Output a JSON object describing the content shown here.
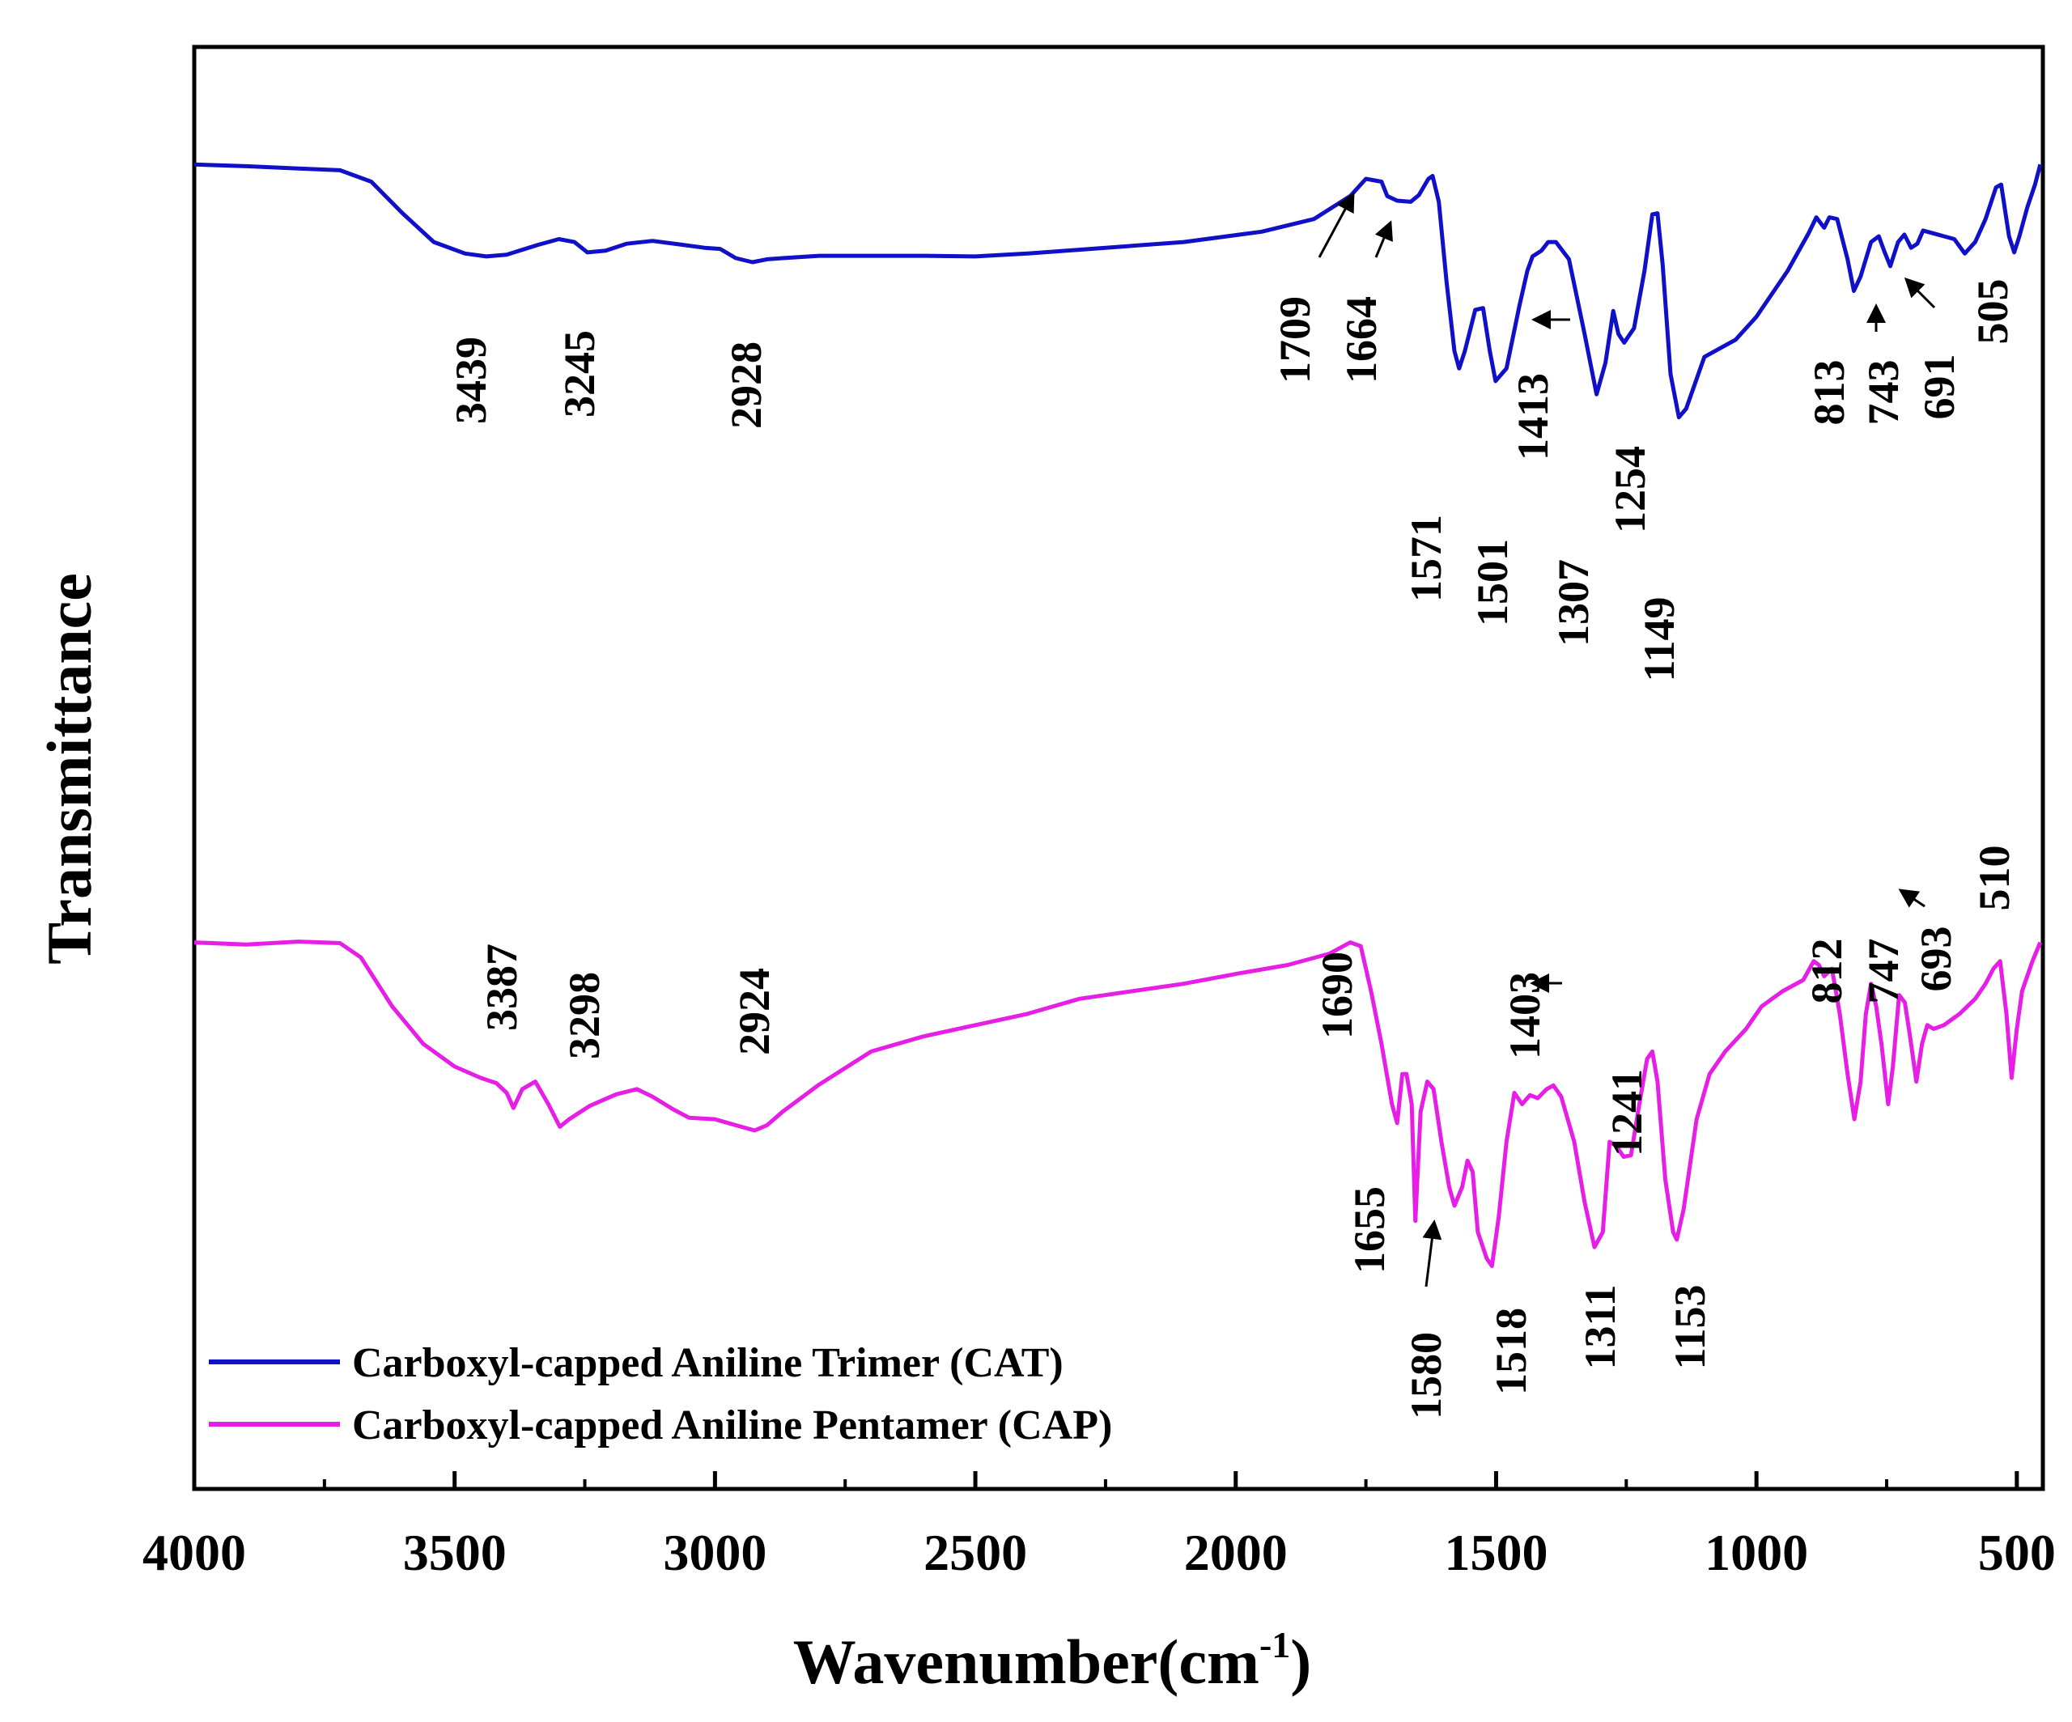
{
  "chart_data": {
    "type": "line",
    "title": "",
    "xlabel": "Wavenumber(cm",
    "xlabel_sup": "-1",
    "xlabel_close": ")",
    "ylabel": "Transmittance",
    "xlim": [
      4000,
      450
    ],
    "x_ticks": [
      4000,
      3500,
      3000,
      2500,
      2000,
      1500,
      1000,
      500
    ],
    "x_tick_labels": [
      "4000",
      "3500",
      "3000",
      "2500",
      "2000",
      "1500",
      "1000",
      "500"
    ],
    "x_minor_ticks": [
      3750,
      3250,
      2750,
      2250,
      1750,
      1250,
      750
    ],
    "grid": false,
    "legend_position": "bottom-left",
    "colors": {
      "CAT": "#1010c8",
      "CAP": "#e61ee6",
      "axis": "#000000",
      "text": "#000000"
    },
    "series": [
      {
        "id": "CAT",
        "name": "Carboxyl-capped Aniline Trimer (CAT)",
        "color": "#1010c8",
        "y_domain": [
          0,
          1
        ],
        "points": [
          [
            4000,
            0.925
          ],
          [
            3900,
            0.922
          ],
          [
            3800,
            0.918
          ],
          [
            3720,
            0.915
          ],
          [
            3660,
            0.895
          ],
          [
            3600,
            0.84
          ],
          [
            3540,
            0.79
          ],
          [
            3480,
            0.77
          ],
          [
            3439,
            0.765
          ],
          [
            3400,
            0.768
          ],
          [
            3340,
            0.785
          ],
          [
            3300,
            0.795
          ],
          [
            3270,
            0.79
          ],
          [
            3245,
            0.772
          ],
          [
            3210,
            0.775
          ],
          [
            3170,
            0.787
          ],
          [
            3120,
            0.792
          ],
          [
            3070,
            0.786
          ],
          [
            3020,
            0.78
          ],
          [
            2990,
            0.778
          ],
          [
            2960,
            0.762
          ],
          [
            2928,
            0.755
          ],
          [
            2900,
            0.76
          ],
          [
            2870,
            0.762
          ],
          [
            2800,
            0.766
          ],
          [
            2600,
            0.766
          ],
          [
            2500,
            0.765
          ],
          [
            2400,
            0.77
          ],
          [
            2250,
            0.78
          ],
          [
            2100,
            0.79
          ],
          [
            1950,
            0.808
          ],
          [
            1850,
            0.83
          ],
          [
            1780,
            0.87
          ],
          [
            1750,
            0.9
          ],
          [
            1720,
            0.895
          ],
          [
            1709,
            0.87
          ],
          [
            1690,
            0.862
          ],
          [
            1664,
            0.86
          ],
          [
            1648,
            0.872
          ],
          [
            1630,
            0.9
          ],
          [
            1622,
            0.905
          ],
          [
            1610,
            0.86
          ],
          [
            1595,
            0.72
          ],
          [
            1580,
            0.6
          ],
          [
            1571,
            0.57
          ],
          [
            1560,
            0.6
          ],
          [
            1540,
            0.672
          ],
          [
            1525,
            0.675
          ],
          [
            1512,
            0.6
          ],
          [
            1501,
            0.548
          ],
          [
            1480,
            0.57
          ],
          [
            1455,
            0.68
          ],
          [
            1440,
            0.74
          ],
          [
            1430,
            0.765
          ],
          [
            1413,
            0.775
          ],
          [
            1400,
            0.79
          ],
          [
            1385,
            0.79
          ],
          [
            1360,
            0.76
          ],
          [
            1330,
            0.63
          ],
          [
            1307,
            0.525
          ],
          [
            1290,
            0.58
          ],
          [
            1275,
            0.67
          ],
          [
            1265,
            0.63
          ],
          [
            1254,
            0.615
          ],
          [
            1235,
            0.64
          ],
          [
            1215,
            0.74
          ],
          [
            1200,
            0.838
          ],
          [
            1190,
            0.84
          ],
          [
            1180,
            0.75
          ],
          [
            1165,
            0.56
          ],
          [
            1149,
            0.485
          ],
          [
            1135,
            0.5
          ],
          [
            1100,
            0.59
          ],
          [
            1040,
            0.62
          ],
          [
            1000,
            0.66
          ],
          [
            940,
            0.74
          ],
          [
            900,
            0.805
          ],
          [
            885,
            0.833
          ],
          [
            870,
            0.815
          ],
          [
            860,
            0.833
          ],
          [
            845,
            0.83
          ],
          [
            825,
            0.76
          ],
          [
            813,
            0.705
          ],
          [
            800,
            0.73
          ],
          [
            780,
            0.79
          ],
          [
            765,
            0.8
          ],
          [
            755,
            0.775
          ],
          [
            743,
            0.748
          ],
          [
            728,
            0.79
          ],
          [
            716,
            0.803
          ],
          [
            703,
            0.78
          ],
          [
            691,
            0.787
          ],
          [
            680,
            0.81
          ],
          [
            660,
            0.805
          ],
          [
            640,
            0.8
          ],
          [
            620,
            0.795
          ],
          [
            600,
            0.77
          ],
          [
            580,
            0.79
          ],
          [
            560,
            0.83
          ],
          [
            540,
            0.885
          ],
          [
            530,
            0.89
          ],
          [
            515,
            0.8
          ],
          [
            505,
            0.772
          ],
          [
            495,
            0.8
          ],
          [
            480,
            0.85
          ],
          [
            465,
            0.89
          ],
          [
            455,
            0.925
          ]
        ],
        "peak_labels": [
          "3439",
          "3245",
          "2928",
          "1709",
          "1664",
          "1571",
          "1501",
          "1413",
          "1307",
          "1254",
          "1149",
          "813",
          "743",
          "691",
          "505"
        ]
      },
      {
        "id": "CAP",
        "name": "Carboxyl-capped Aniline Pentamer (CAP)",
        "color": "#e61ee6",
        "y_domain": [
          0,
          1
        ],
        "points": [
          [
            4000,
            0.565
          ],
          [
            3900,
            0.562
          ],
          [
            3800,
            0.566
          ],
          [
            3720,
            0.564
          ],
          [
            3680,
            0.545
          ],
          [
            3620,
            0.48
          ],
          [
            3560,
            0.43
          ],
          [
            3500,
            0.4
          ],
          [
            3450,
            0.385
          ],
          [
            3420,
            0.378
          ],
          [
            3400,
            0.365
          ],
          [
            3387,
            0.345
          ],
          [
            3370,
            0.37
          ],
          [
            3345,
            0.38
          ],
          [
            3320,
            0.35
          ],
          [
            3298,
            0.32
          ],
          [
            3280,
            0.33
          ],
          [
            3240,
            0.348
          ],
          [
            3190,
            0.363
          ],
          [
            3150,
            0.37
          ],
          [
            3120,
            0.36
          ],
          [
            3080,
            0.343
          ],
          [
            3050,
            0.332
          ],
          [
            3000,
            0.33
          ],
          [
            2960,
            0.322
          ],
          [
            2924,
            0.315
          ],
          [
            2900,
            0.322
          ],
          [
            2870,
            0.34
          ],
          [
            2800,
            0.376
          ],
          [
            2700,
            0.42
          ],
          [
            2600,
            0.44
          ],
          [
            2500,
            0.455
          ],
          [
            2400,
            0.47
          ],
          [
            2300,
            0.49
          ],
          [
            2200,
            0.5
          ],
          [
            2100,
            0.51
          ],
          [
            2000,
            0.523
          ],
          [
            1900,
            0.535
          ],
          [
            1820,
            0.55
          ],
          [
            1780,
            0.565
          ],
          [
            1760,
            0.56
          ],
          [
            1740,
            0.5
          ],
          [
            1720,
            0.43
          ],
          [
            1700,
            0.35
          ],
          [
            1690,
            0.325
          ],
          [
            1680,
            0.39
          ],
          [
            1672,
            0.39
          ],
          [
            1662,
            0.35
          ],
          [
            1655,
            0.195
          ],
          [
            1645,
            0.34
          ],
          [
            1632,
            0.38
          ],
          [
            1620,
            0.37
          ],
          [
            1605,
            0.3
          ],
          [
            1590,
            0.24
          ],
          [
            1580,
            0.215
          ],
          [
            1565,
            0.24
          ],
          [
            1555,
            0.275
          ],
          [
            1545,
            0.26
          ],
          [
            1535,
            0.18
          ],
          [
            1518,
            0.145
          ],
          [
            1508,
            0.135
          ],
          [
            1495,
            0.2
          ],
          [
            1480,
            0.3
          ],
          [
            1465,
            0.365
          ],
          [
            1450,
            0.35
          ],
          [
            1435,
            0.362
          ],
          [
            1420,
            0.358
          ],
          [
            1403,
            0.37
          ],
          [
            1390,
            0.375
          ],
          [
            1375,
            0.36
          ],
          [
            1350,
            0.3
          ],
          [
            1330,
            0.22
          ],
          [
            1311,
            0.16
          ],
          [
            1295,
            0.18
          ],
          [
            1282,
            0.3
          ],
          [
            1270,
            0.295
          ],
          [
            1255,
            0.28
          ],
          [
            1241,
            0.282
          ],
          [
            1225,
            0.35
          ],
          [
            1210,
            0.41
          ],
          [
            1200,
            0.42
          ],
          [
            1190,
            0.38
          ],
          [
            1175,
            0.25
          ],
          [
            1160,
            0.18
          ],
          [
            1153,
            0.17
          ],
          [
            1140,
            0.21
          ],
          [
            1115,
            0.33
          ],
          [
            1090,
            0.39
          ],
          [
            1060,
            0.42
          ],
          [
            1020,
            0.45
          ],
          [
            990,
            0.48
          ],
          [
            950,
            0.5
          ],
          [
            910,
            0.515
          ],
          [
            890,
            0.54
          ],
          [
            880,
            0.535
          ],
          [
            870,
            0.52
          ],
          [
            855,
            0.53
          ],
          [
            840,
            0.47
          ],
          [
            825,
            0.39
          ],
          [
            812,
            0.33
          ],
          [
            800,
            0.38
          ],
          [
            790,
            0.47
          ],
          [
            780,
            0.51
          ],
          [
            770,
            0.48
          ],
          [
            760,
            0.43
          ],
          [
            747,
            0.35
          ],
          [
            738,
            0.4
          ],
          [
            726,
            0.495
          ],
          [
            715,
            0.485
          ],
          [
            705,
            0.44
          ],
          [
            693,
            0.38
          ],
          [
            682,
            0.43
          ],
          [
            672,
            0.455
          ],
          [
            660,
            0.45
          ],
          [
            640,
            0.455
          ],
          [
            610,
            0.47
          ],
          [
            580,
            0.49
          ],
          [
            560,
            0.51
          ],
          [
            545,
            0.53
          ],
          [
            532,
            0.54
          ],
          [
            520,
            0.47
          ],
          [
            510,
            0.385
          ],
          [
            500,
            0.45
          ],
          [
            490,
            0.5
          ],
          [
            470,
            0.54
          ],
          [
            455,
            0.565
          ]
        ],
        "peak_labels": [
          "3387",
          "3298",
          "2924",
          "1690",
          "1655",
          "1580",
          "1518",
          "1403",
          "1311",
          "1241",
          "1153",
          "812",
          "747",
          "693",
          "510"
        ]
      }
    ]
  }
}
